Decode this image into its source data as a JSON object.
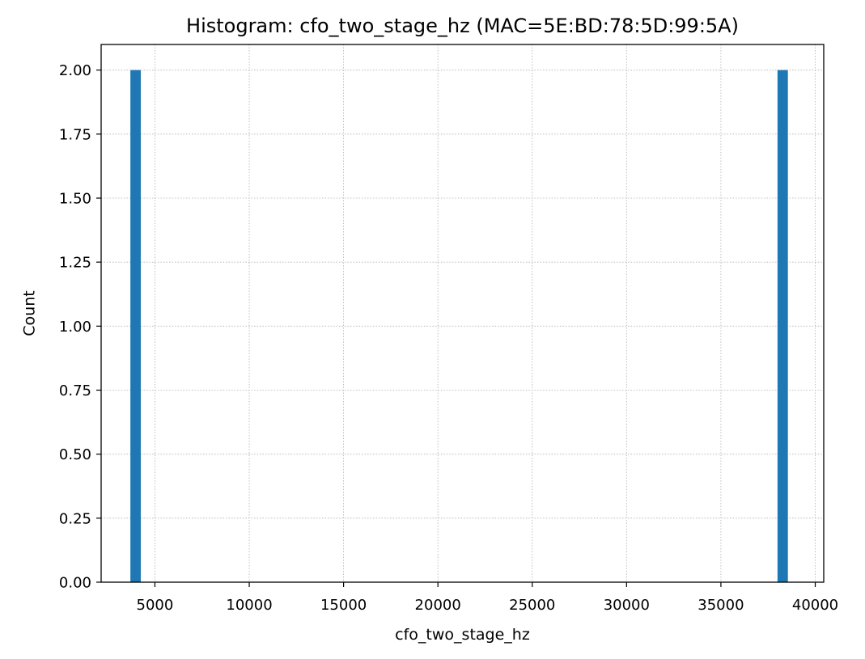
{
  "chart_data": {
    "type": "bar",
    "title": "Histogram: cfo_two_stage_hz (MAC=5E:BD:78:5D:99:5A)",
    "xlabel": "cfo_two_stage_hz",
    "ylabel": "Count",
    "xlim": [
      2150,
      40450
    ],
    "ylim": [
      0,
      2.1
    ],
    "grid": true,
    "bar_color": "#1f77b4",
    "bars": [
      {
        "x0": 3700,
        "x1": 4250,
        "count": 2
      },
      {
        "x0": 38000,
        "x1": 38550,
        "count": 2
      }
    ],
    "x_ticks": [
      {
        "value": 5000,
        "label": "5000"
      },
      {
        "value": 10000,
        "label": "10000"
      },
      {
        "value": 15000,
        "label": "15000"
      },
      {
        "value": 20000,
        "label": "20000"
      },
      {
        "value": 25000,
        "label": "25000"
      },
      {
        "value": 30000,
        "label": "30000"
      },
      {
        "value": 35000,
        "label": "35000"
      },
      {
        "value": 40000,
        "label": "40000"
      }
    ],
    "y_ticks": [
      {
        "value": 0,
        "label": "0.00"
      },
      {
        "value": 0.25,
        "label": "0.25"
      },
      {
        "value": 0.5,
        "label": "0.50"
      },
      {
        "value": 0.75,
        "label": "0.75"
      },
      {
        "value": 1.0,
        "label": "1.00"
      },
      {
        "value": 1.25,
        "label": "1.25"
      },
      {
        "value": 1.5,
        "label": "1.50"
      },
      {
        "value": 1.75,
        "label": "1.75"
      },
      {
        "value": 2.0,
        "label": "2.00"
      }
    ]
  }
}
